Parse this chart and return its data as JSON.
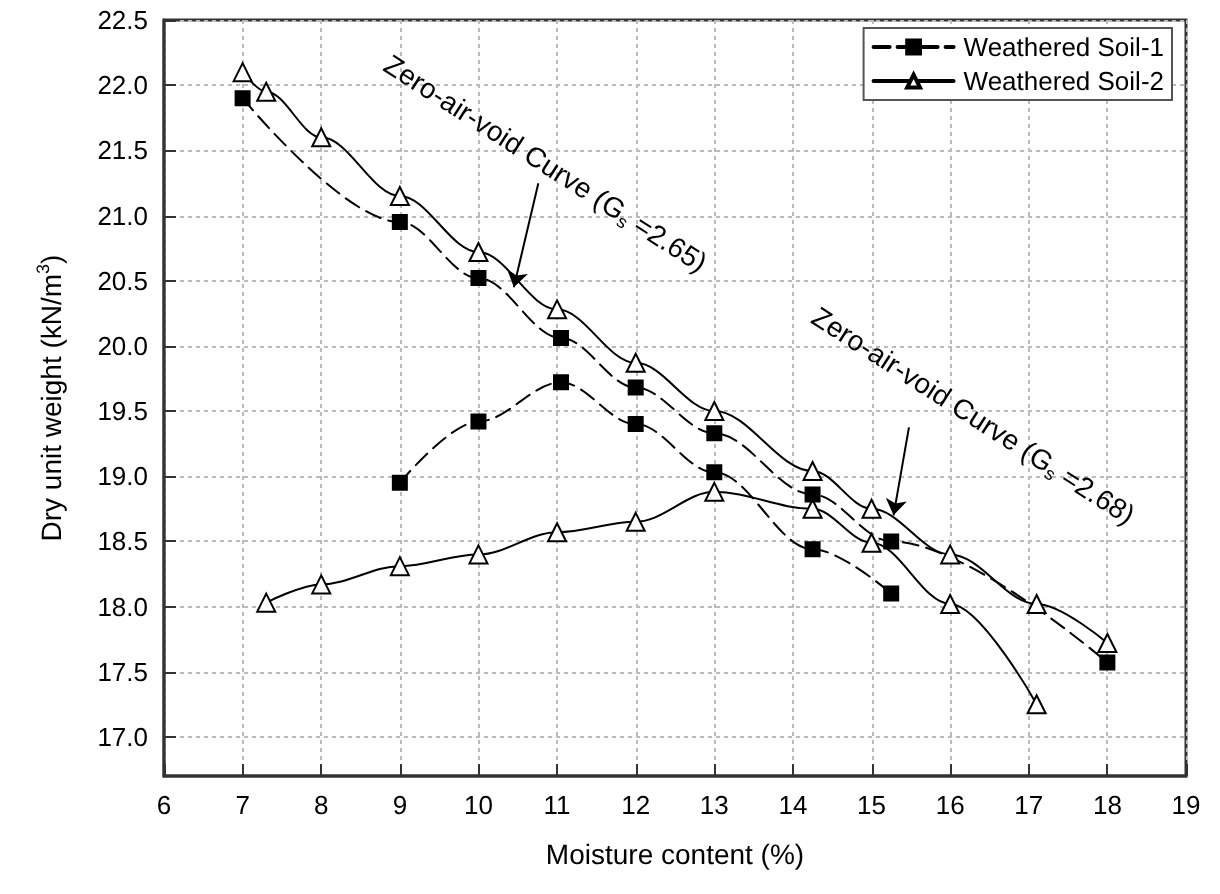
{
  "chart_data": {
    "type": "line",
    "xlabel": "Moisture content (%)",
    "ylabel": "Dry unit weight (kN/m$^{3}$)",
    "xlim": [
      6,
      19
    ],
    "xticks": [
      6,
      7,
      8,
      9,
      10,
      11,
      12,
      13,
      14,
      15,
      16,
      17,
      18,
      19
    ],
    "ylim": [
      16.7,
      22.5
    ],
    "yticks": [
      {
        "value": 17,
        "label": "17.0"
      },
      {
        "value": 17.5,
        "label": "17.5"
      },
      {
        "value": 18,
        "label": "18.0"
      },
      {
        "value": 18.5,
        "label": "18.5"
      },
      {
        "value": 19,
        "label": "19.0"
      },
      {
        "value": 19.5,
        "label": "19.5"
      },
      {
        "value": 20,
        "label": "20.0"
      },
      {
        "value": 20.5,
        "label": "20.5"
      },
      {
        "value": 21,
        "label": "21.0"
      },
      {
        "value": 21.5,
        "label": "21.5"
      },
      {
        "value": 22,
        "label": "22.0"
      },
      {
        "value": 22.5,
        "label": "22.5"
      }
    ],
    "grid": true,
    "legend": "top right",
    "series": [
      {
        "name": "Weathered Soil-1",
        "color": "#000000",
        "marker": "square",
        "line_style": "dashed",
        "x": [
          9,
          10,
          11.05,
          12,
          13,
          14.25,
          15.25
        ],
        "values": [
          18.95,
          19.42,
          19.72,
          19.4,
          19.03,
          18.44,
          18.1
        ]
      },
      {
        "name": "Weathered Soil-2",
        "color": "#000000",
        "marker": "triangle",
        "line_style": "solid",
        "x": [
          7.3,
          8,
          9,
          10,
          11,
          12,
          13,
          14.25,
          15,
          16,
          17.1
        ],
        "values": [
          18.03,
          18.17,
          18.31,
          18.4,
          18.57,
          18.65,
          18.88,
          18.75,
          18.49,
          18.02,
          17.25
        ]
      },
      {
        "color": "#000000",
        "marker": "square",
        "line_style": "dashed",
        "x": [
          7,
          9,
          10,
          11.05,
          12,
          13,
          14.25,
          15.25,
          18
        ],
        "values": [
          21.9,
          20.95,
          20.52,
          20.06,
          19.68,
          19.33,
          18.86,
          18.5,
          17.57
        ]
      },
      {
        "color": "#000000",
        "marker": "triangle",
        "line_style": "solid",
        "x": [
          7,
          7.3,
          8,
          9,
          10,
          11,
          12,
          13,
          14.25,
          15,
          16,
          17.1,
          18
        ],
        "values": [
          22.1,
          21.95,
          21.6,
          21.15,
          20.72,
          20.28,
          19.87,
          19.5,
          19.04,
          18.75,
          18.4,
          18.02,
          17.72
        ]
      }
    ],
    "annotations": [
      {
        "text": "Zero-air-void Curve (G$_{s}$ =2.65)",
        "x": 10.45,
        "y": 20.45
      },
      {
        "text": "Zero-air-void Curve (G$_{s}$ =2.68)",
        "x": 15.28,
        "y": 18.7
      }
    ]
  }
}
